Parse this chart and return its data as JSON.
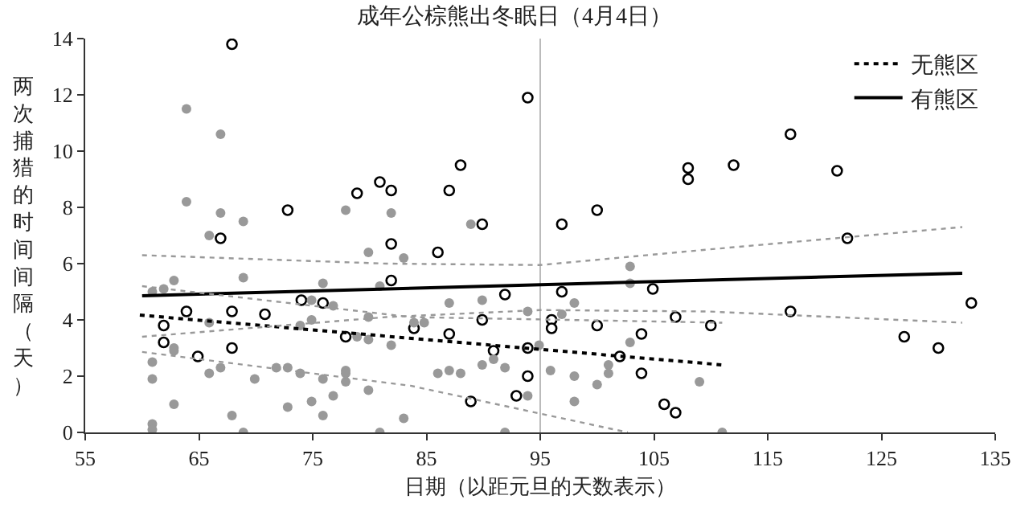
{
  "chart_data": {
    "type": "scatter",
    "title": "成年公棕熊出冬眠日（4月4日）",
    "xlabel": "日期（以距元旦的天数表示）",
    "ylabel": "两次捕猎的时间间隔（天）",
    "xlim": [
      55,
      135
    ],
    "xticks": [
      55,
      65,
      75,
      85,
      95,
      105,
      115,
      125,
      135
    ],
    "ylim": [
      0,
      14
    ],
    "yticks": [
      0,
      2,
      4,
      6,
      8,
      10,
      12,
      14
    ],
    "grid": false,
    "legend": "top right",
    "ref_lines": [
      {
        "axis": "x",
        "value": 95,
        "color": "#bbbbbb"
      }
    ],
    "series": [
      {
        "marker": "circle",
        "color": "#000000",
        "x": [
          67.9,
          72.8,
          78.9,
          80.9,
          81.9,
          66.9,
          81.9,
          81.9,
          74.0,
          75.9,
          63.9,
          67.9,
          70.8,
          61.9,
          61.9,
          64.9,
          67.9,
          77.9,
          93.9,
          88.0,
          87.0,
          89.9,
          96.9,
          100.0,
          108.0,
          108.0,
          86.0,
          91.9,
          96.9,
          104.9,
          106.9,
          89.9,
          96.0,
          96.0,
          100.0,
          83.9,
          87.0,
          103.9,
          90.9,
          93.9,
          102.0,
          103.9,
          93.9,
          92.9,
          88.9,
          105.9,
          106.9,
          117.0,
          112.0,
          121.1,
          122.0,
          117.0,
          132.9,
          110.0,
          127.0,
          130.0
        ],
        "values": [
          13.8,
          7.9,
          8.5,
          8.9,
          8.6,
          6.9,
          6.7,
          5.4,
          4.7,
          4.6,
          4.3,
          4.3,
          4.2,
          3.8,
          3.2,
          2.7,
          3.0,
          3.4,
          11.9,
          9.5,
          8.6,
          7.4,
          7.4,
          7.9,
          9.4,
          9.0,
          6.4,
          4.9,
          5.0,
          5.1,
          4.1,
          4.0,
          4.0,
          3.7,
          3.8,
          3.7,
          3.5,
          3.5,
          2.9,
          3.0,
          2.7,
          2.1,
          2.0,
          1.3,
          1.1,
          1.0,
          0.7,
          10.6,
          9.5,
          9.3,
          6.9,
          4.3,
          4.6,
          3.8,
          3.4,
          3.0
        ]
      },
      {
        "marker": "circle",
        "color": "#999999",
        "x": [
          63.9,
          66.9,
          63.9,
          66.9,
          68.9,
          65.9,
          77.9,
          81.9,
          79.9,
          83.0,
          62.8,
          68.9,
          75.9,
          80.9,
          60.9,
          61.9,
          74.9,
          76.8,
          73.9,
          74.9,
          79.9,
          65.9,
          78.9,
          79.9,
          81.9,
          62.8,
          62.8,
          60.9,
          60.9,
          66.9,
          65.9,
          69.9,
          71.8,
          72.8,
          73.9,
          75.9,
          77.9,
          77.9,
          77.9,
          79.9,
          76.8,
          62.8,
          74.9,
          72.8,
          67.9,
          75.9,
          83.0,
          60.9,
          60.9,
          68.9,
          80.9,
          88.9,
          87.0,
          89.9,
          93.9,
          98.0,
          96.9,
          102.9,
          102.9,
          83.9,
          84.8,
          94.9,
          102.9,
          89.9,
          90.9,
          91.9,
          86.0,
          87.0,
          88.0,
          95.9,
          98.0,
          101.0,
          101.0,
          100.0,
          93.9,
          98.0,
          91.9,
          109.0,
          111.0
        ],
        "values": [
          11.5,
          10.6,
          8.2,
          7.8,
          7.5,
          7.0,
          7.9,
          7.8,
          6.4,
          6.2,
          5.4,
          5.5,
          5.3,
          5.2,
          5.0,
          5.1,
          4.7,
          4.5,
          3.8,
          4.0,
          4.1,
          3.9,
          3.4,
          3.3,
          3.1,
          3.0,
          2.9,
          2.5,
          1.9,
          2.3,
          2.1,
          1.9,
          2.3,
          2.3,
          2.1,
          1.9,
          2.2,
          2.1,
          1.8,
          1.5,
          1.3,
          1.0,
          1.1,
          0.9,
          0.6,
          0.6,
          0.5,
          0.3,
          0.1,
          0,
          0,
          7.4,
          4.6,
          4.7,
          4.3,
          4.6,
          4.2,
          5.9,
          5.3,
          3.9,
          3.9,
          3.1,
          3.2,
          2.4,
          2.6,
          2.3,
          2.1,
          2.2,
          2.1,
          2.2,
          2.0,
          2.4,
          2.1,
          1.7,
          1.3,
          1.1,
          0,
          1.8,
          0
        ]
      },
      {
        "type": "line",
        "name": "无熊区",
        "color": "#000000",
        "line_style": "dotted",
        "x": [
          59.8,
          111.0
        ],
        "values": [
          4.17,
          2.4
        ]
      },
      {
        "type": "line",
        "name": "有熊区",
        "color": "#000000",
        "line_style": "solid",
        "x": [
          60.0,
          132.1
        ],
        "values": [
          4.86,
          5.66
        ]
      },
      {
        "type": "line",
        "color": "#999999",
        "line_style": "dotted",
        "x": [
          60,
          83.6,
          111
        ],
        "values": [
          5.2,
          4.1,
          3.9
        ]
      },
      {
        "type": "line",
        "color": "#999999",
        "line_style": "dotted",
        "x": [
          60,
          83.6,
          102.7
        ],
        "values": [
          2.86,
          1.66,
          0
        ]
      },
      {
        "type": "line",
        "color": "#999999",
        "line_style": "dotted",
        "x": [
          60,
          81.5,
          95,
          109.7,
          132.1
        ],
        "values": [
          6.3,
          6.0,
          5.95,
          6.5,
          7.3
        ]
      },
      {
        "type": "line",
        "color": "#999999",
        "line_style": "dotted",
        "x": [
          60,
          81.5,
          95,
          109.7,
          132.1
        ],
        "values": [
          3.4,
          4.1,
          4.35,
          4.3,
          3.9
        ]
      }
    ]
  }
}
